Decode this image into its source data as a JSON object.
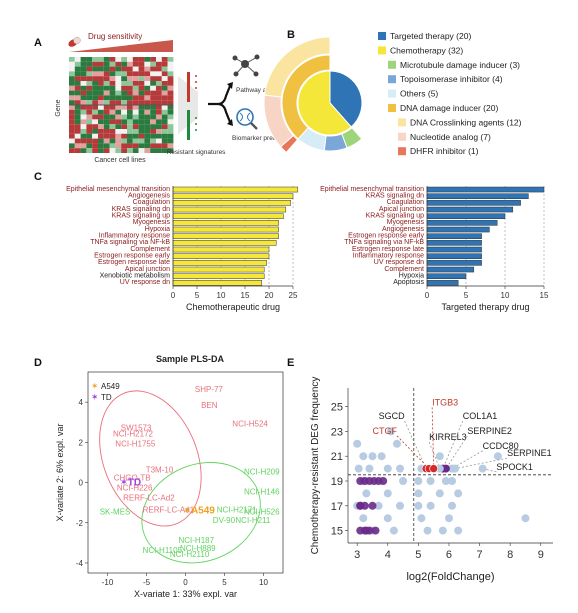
{
  "panel_labels": {
    "a": "A",
    "b": "B",
    "c": "C",
    "d": "D",
    "e": "E"
  },
  "panel_a": {
    "drug_sensitivity": "Drug sensitivity",
    "gene_axis": "Gene",
    "cell_lines_axis": "Cancer cell lines",
    "resistant_signatures": "Resistant signatures",
    "pathway_analysis": "Pathway analysis",
    "biomarker_prediction": "Biomarker prediction"
  },
  "colors": {
    "targeted": "#2f75b5",
    "chemo": "#f5e63a",
    "sig_red": "#c0392b",
    "sig_green": "#1e8a3c",
    "nonsig_blue": "#b7cbe3",
    "purple": "#6a2a8a",
    "cyan_green": "#5fd35f",
    "red_circle": "#e8707a",
    "a549": "#f0a020",
    "td": "#a040e0"
  },
  "chart_data": [
    {
      "id": "B",
      "type": "pie",
      "legend": [
        {
          "label": "Targeted therapy (20)",
          "value": 20,
          "color": "#2f75b5",
          "level": 1
        },
        {
          "label": "Chemotherapy (32)",
          "value": 32,
          "color": "#f5e63a",
          "level": 1
        },
        {
          "label": "Microtubule damage inducer (3)",
          "value": 3,
          "color": "#9fd57a",
          "level": 2
        },
        {
          "label": "Topoisomerase inhibitor (4)",
          "value": 4,
          "color": "#7aa7d8",
          "level": 2
        },
        {
          "label": "Others (5)",
          "value": 5,
          "color": "#d6ecf7",
          "level": 2
        },
        {
          "label": "DNA damage inducer (20)",
          "value": 20,
          "color": "#f0c040",
          "level": 2
        },
        {
          "label": "DNA Crosslinking agents (12)",
          "value": 12,
          "color": "#fae4a0",
          "level": 3
        },
        {
          "label": "Nucleotide analog (7)",
          "value": 7,
          "color": "#f7d4c4",
          "level": 3
        },
        {
          "label": "DHFR inhibitor (1)",
          "value": 1,
          "color": "#e8775a",
          "level": 3
        }
      ]
    },
    {
      "id": "C-left",
      "type": "bar",
      "orientation": "horizontal",
      "xlabel": "Chemotherapeutic drug",
      "xlim": [
        0,
        25
      ],
      "xticks": [
        "0",
        "5",
        "10",
        "15",
        "20",
        "25"
      ],
      "categories": [
        "Epithelial mesenchymal transition",
        "Angiogenesis",
        "Coagulation",
        "KRAS signaling dn",
        "KRAS signaling up",
        "Myogenesis",
        "Hypoxia",
        "Inflammatory response",
        "TNFa signaling via NF-kB",
        "Complement",
        "Estrogen response early",
        "Estrogen response late",
        "Apical junction",
        "Xenobiotic metabolism",
        "UV response dn"
      ],
      "values": [
        26,
        25,
        24.5,
        23.5,
        23,
        22,
        22,
        22,
        21.5,
        20,
        20,
        19.5,
        19,
        19,
        18.5
      ],
      "significant": [
        true,
        true,
        true,
        true,
        true,
        true,
        true,
        true,
        true,
        true,
        true,
        true,
        true,
        false,
        true
      ]
    },
    {
      "id": "C-right",
      "type": "bar",
      "orientation": "horizontal",
      "xlabel": "Targeted therapy drug",
      "xlim": [
        0,
        15
      ],
      "xticks": [
        "0",
        "5",
        "10",
        "15"
      ],
      "categories": [
        "Epithelial mesenchymal transition",
        "KRAS signaling dn",
        "Coagulation",
        "Apical junction",
        "KRAS signaling up",
        "Myogenesis",
        "Angiogenesis",
        "Estrogen response early",
        "TNFa signaling via NF-kB",
        "Estrogen response late",
        "Inflammatory response",
        "UV response dn",
        "Complement",
        "Hypoxia",
        "Apoptosis"
      ],
      "values": [
        15,
        13,
        12,
        11,
        10,
        9,
        8,
        7,
        7,
        7,
        7,
        7,
        6,
        5,
        4
      ],
      "significant": [
        true,
        true,
        true,
        true,
        true,
        true,
        true,
        true,
        true,
        true,
        true,
        true,
        true,
        false,
        false
      ]
    },
    {
      "id": "D",
      "type": "scatter",
      "title": "Sample PLS-DA",
      "xlabel": "X-variate 1: 33% expl. var",
      "ylabel": "X-variate 2: 6% expl. var",
      "xlim": [
        -12.5,
        12.5
      ],
      "ylim": [
        -4.5,
        5.5
      ],
      "xticks": [
        "-10",
        "-5",
        "0",
        "5",
        "10"
      ],
      "yticks": [
        "-4",
        "-2",
        "0",
        "2",
        "4"
      ],
      "legend": [
        {
          "label": "A549",
          "color": "#f0a020"
        },
        {
          "label": "TD",
          "color": "#a040e0"
        }
      ],
      "red_group": [
        {
          "label": "SHP-77",
          "x": 1.2,
          "y": 4.5
        },
        {
          "label": "BEN",
          "x": 2.0,
          "y": 3.7
        },
        {
          "label": "NCI-H524",
          "x": 6.0,
          "y": 2.8
        },
        {
          "label": "SW1573",
          "x": -8.3,
          "y": 2.6
        },
        {
          "label": "NCI-H2172",
          "x": -9.3,
          "y": 2.3
        },
        {
          "label": "NCI-H1755",
          "x": -9.0,
          "y": 1.8
        },
        {
          "label": "T3M-10",
          "x": -5.1,
          "y": 0.5
        },
        {
          "label": "CHGO-TB",
          "x": -9.2,
          "y": 0.1
        },
        {
          "label": "NCI-H226",
          "x": -8.8,
          "y": -0.4
        },
        {
          "label": "RERF-LC-Ad2",
          "x": -8.0,
          "y": -0.9
        },
        {
          "label": "RERF-LC-Ad1",
          "x": -5.5,
          "y": -1.5
        }
      ],
      "green_group": [
        {
          "label": "NCI-H209",
          "x": 7.5,
          "y": 0.4
        },
        {
          "label": "NCI-H146",
          "x": 7.5,
          "y": -0.6
        },
        {
          "label": "NCI-H526",
          "x": 7.5,
          "y": -1.6
        },
        {
          "label": "NCI-H2171",
          "x": 4.0,
          "y": -1.5
        },
        {
          "label": "NCI-H211",
          "x": 6.4,
          "y": -2.0
        },
        {
          "label": "DV-90",
          "x": 3.5,
          "y": -2.0
        },
        {
          "label": "SK-MES",
          "x": -11.0,
          "y": -1.6
        },
        {
          "label": "NCI-H187",
          "x": -0.9,
          "y": -3.0
        },
        {
          "label": "NCI-H889",
          "x": -0.7,
          "y": -3.4
        },
        {
          "label": "NCI-H1105",
          "x": -5.5,
          "y": -3.5
        },
        {
          "label": "NCI-H2110",
          "x": -2.0,
          "y": -3.7
        }
      ],
      "a549_label": {
        "label": "A549",
        "x": 0.7,
        "y": -1.4
      },
      "td_label": {
        "label": "TD",
        "x": -7.4,
        "y": 0.0
      },
      "ellipses": [
        {
          "group": "red",
          "cx": -4.5,
          "cy": 1.2,
          "rx": 6.0,
          "ry": 3.5,
          "angle": 22
        },
        {
          "group": "green",
          "cx": 2.0,
          "cy": -1.5,
          "rx": 7.8,
          "ry": 2.4,
          "angle": 22
        }
      ]
    },
    {
      "id": "E",
      "type": "scatter",
      "xlabel": "log2(FoldChange)",
      "ylabel": "Chemotherapy-resistant DEG frequency",
      "xlim": [
        2.7,
        9.4
      ],
      "ylim": [
        14,
        26.5
      ],
      "xticks": [
        "3",
        "4",
        "5",
        "6",
        "7",
        "8",
        "9"
      ],
      "yticks": [
        "15",
        "17",
        "19",
        "21",
        "23",
        "25"
      ],
      "hline": 19.5,
      "vline": 4.85,
      "nonsig_points": [
        [
          3.05,
          20
        ],
        [
          3.4,
          20
        ],
        [
          4.0,
          20
        ],
        [
          4.4,
          20
        ],
        [
          3.2,
          21
        ],
        [
          3.5,
          21
        ],
        [
          3.8,
          21
        ],
        [
          4.3,
          22
        ],
        [
          3.0,
          22
        ],
        [
          4.1,
          23
        ],
        [
          3.2,
          19
        ],
        [
          4.5,
          19
        ],
        [
          5.0,
          19
        ],
        [
          5.4,
          19
        ],
        [
          5.9,
          19
        ],
        [
          6.1,
          19
        ],
        [
          3.3,
          18
        ],
        [
          4.0,
          18
        ],
        [
          5.0,
          18
        ],
        [
          5.7,
          18
        ],
        [
          6.3,
          18
        ],
        [
          3.0,
          17
        ],
        [
          3.7,
          17
        ],
        [
          4.4,
          17
        ],
        [
          5.0,
          17
        ],
        [
          5.4,
          17
        ],
        [
          6.1,
          17
        ],
        [
          3.2,
          16
        ],
        [
          4.0,
          16
        ],
        [
          5.1,
          16
        ],
        [
          6.0,
          16
        ],
        [
          8.5,
          16
        ],
        [
          3.5,
          15
        ],
        [
          4.2,
          15
        ],
        [
          5.3,
          15
        ],
        [
          5.8,
          15
        ],
        [
          6.3,
          15
        ],
        [
          5.1,
          20
        ],
        [
          5.7,
          21
        ],
        [
          6.1,
          20
        ],
        [
          7.6,
          21
        ]
      ],
      "purple_points": [
        [
          3.1,
          19
        ],
        [
          3.25,
          19
        ],
        [
          3.4,
          19
        ],
        [
          3.55,
          19
        ],
        [
          3.7,
          19
        ],
        [
          3.85,
          19
        ],
        [
          3.1,
          17
        ],
        [
          3.25,
          17
        ],
        [
          3.5,
          17
        ],
        [
          3.1,
          15
        ],
        [
          3.25,
          15
        ],
        [
          3.4,
          15
        ],
        [
          3.6,
          15
        ],
        [
          3.1,
          17
        ],
        [
          3.3,
          15
        ]
      ],
      "sig_points": [
        {
          "label": "SPOCK1",
          "x": 7.1,
          "y": 20,
          "color": "nonsig"
        },
        {
          "label": "SERPINE1",
          "x": 6.2,
          "y": 20,
          "color": "nonsig"
        },
        {
          "label": "CCDC80",
          "x": 6.1,
          "y": 20,
          "color": "nonsig"
        },
        {
          "label": "SERPINE2",
          "x": 5.9,
          "y": 20,
          "color": "purple"
        },
        {
          "label": "COL1A1",
          "x": 5.8,
          "y": 20,
          "color": "purple"
        },
        {
          "label": "KIRREL3",
          "x": 5.7,
          "y": 20,
          "color": "nonsig"
        },
        {
          "label": "SGCD",
          "x": 5.25,
          "y": 20,
          "color": "red"
        },
        {
          "label": "CTGF",
          "x": 5.35,
          "y": 20,
          "color": "red"
        },
        {
          "label": "ITGB3",
          "x": 5.5,
          "y": 20,
          "color": "red"
        }
      ],
      "annotations": [
        {
          "label": "ITGB3",
          "x": 5.45,
          "y": 25.1,
          "color": "red"
        },
        {
          "label": "SGCD",
          "x": 4.55,
          "y": 24.0,
          "color": "black"
        },
        {
          "label": "CTGF",
          "x": 4.3,
          "y": 22.8,
          "color": "red"
        },
        {
          "label": "COL1A1",
          "x": 6.45,
          "y": 24.0,
          "color": "black"
        },
        {
          "label": "KIRREL3",
          "x": 5.35,
          "y": 22.3,
          "color": "black"
        },
        {
          "label": "SERPINE2",
          "x": 6.6,
          "y": 22.8,
          "color": "black"
        },
        {
          "label": "CCDC80",
          "x": 7.1,
          "y": 21.6,
          "color": "black"
        },
        {
          "label": "SERPINE1",
          "x": 7.9,
          "y": 21.0,
          "color": "black"
        },
        {
          "label": "SPOCK1",
          "x": 7.55,
          "y": 19.9,
          "color": "black"
        }
      ]
    }
  ]
}
